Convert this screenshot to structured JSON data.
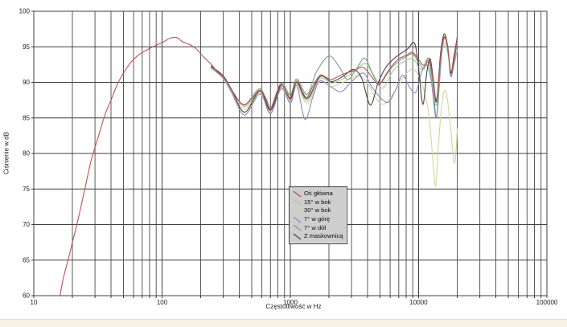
{
  "window": {
    "background_color": "#ffffff",
    "footer_strip_color": "#f6f2e5"
  },
  "chart_data": {
    "type": "line",
    "title": "",
    "xlabel": "Częstotliwość w Hz",
    "ylabel": "Ciśnienie w dB",
    "x_scale": "log",
    "xlim": [
      10,
      100000
    ],
    "ylim": [
      60,
      100
    ],
    "x_ticks": [
      10,
      100,
      1000,
      10000,
      100000
    ],
    "x_tick_labels": [
      "10",
      "100",
      "1000",
      "10000",
      "100000"
    ],
    "y_ticks": [
      100,
      95,
      90,
      85,
      80,
      75,
      70,
      65,
      60
    ],
    "grid": "on",
    "grid_color": "#5a5a5a",
    "major_grid_color": "#3f3f3f",
    "tick_label_color": "#1a1a1a",
    "legend_position": "center-bottom",
    "legend_background": "#cecece",
    "series": [
      {
        "name": "30° w bok",
        "color": "#d8d39b",
        "points": [
          [
            240,
            92.0
          ],
          [
            300,
            90.5
          ],
          [
            350,
            88.6
          ],
          [
            440,
            86.3
          ],
          [
            580,
            88.3
          ],
          [
            700,
            85.8
          ],
          [
            850,
            89.0
          ],
          [
            1000,
            87.2
          ],
          [
            1120,
            89.4
          ],
          [
            1350,
            87.1
          ],
          [
            1700,
            90.1
          ],
          [
            2100,
            89.4
          ],
          [
            2700,
            90.2
          ],
          [
            3300,
            90.9
          ],
          [
            3900,
            90.2
          ],
          [
            4600,
            87.9
          ],
          [
            5300,
            86.9
          ],
          [
            6000,
            87.8
          ],
          [
            7000,
            89.6
          ],
          [
            8000,
            91.2
          ],
          [
            9000,
            91.9
          ],
          [
            10000,
            90.9
          ],
          [
            11000,
            88.9
          ],
          [
            12000,
            85.5
          ],
          [
            13000,
            78.5
          ],
          [
            13600,
            75.5
          ],
          [
            14300,
            81.5
          ],
          [
            15300,
            87.5
          ],
          [
            16300,
            88.8
          ],
          [
            17300,
            85.5
          ],
          [
            18300,
            81.0
          ],
          [
            19000,
            78.6
          ],
          [
            19600,
            80.5
          ],
          [
            20000,
            83.5
          ]
        ]
      },
      {
        "name": "15° w bok",
        "color": "#a7c8a5",
        "points": [
          [
            240,
            92.3
          ],
          [
            300,
            90.9
          ],
          [
            350,
            88.9
          ],
          [
            440,
            86.6
          ],
          [
            580,
            88.6
          ],
          [
            700,
            86.0
          ],
          [
            850,
            89.4
          ],
          [
            1000,
            87.5
          ],
          [
            1120,
            89.8
          ],
          [
            1350,
            87.4
          ],
          [
            1700,
            90.5
          ],
          [
            2100,
            89.9
          ],
          [
            2700,
            90.7
          ],
          [
            3300,
            91.9
          ],
          [
            3900,
            92.6
          ],
          [
            4600,
            90.4
          ],
          [
            5300,
            89.2
          ],
          [
            6300,
            91.6
          ],
          [
            7500,
            92.8
          ],
          [
            9000,
            93.3
          ],
          [
            10500,
            91.8
          ],
          [
            12000,
            92.6
          ],
          [
            13800,
            86.8
          ],
          [
            15500,
            95.2
          ],
          [
            17000,
            93.8
          ],
          [
            18000,
            91.0
          ],
          [
            20000,
            94.6
          ]
        ]
      },
      {
        "name": "7° w górę",
        "color": "#8a88c6",
        "points": [
          [
            240,
            92.1
          ],
          [
            300,
            90.6
          ],
          [
            350,
            88.5
          ],
          [
            440,
            85.4
          ],
          [
            580,
            88.4
          ],
          [
            700,
            85.6
          ],
          [
            850,
            89.2
          ],
          [
            1000,
            87.1
          ],
          [
            1120,
            89.6
          ],
          [
            1300,
            84.8
          ],
          [
            1500,
            88.0
          ],
          [
            1700,
            90.2
          ],
          [
            2100,
            89.3
          ],
          [
            2500,
            88.7
          ],
          [
            3000,
            90.1
          ],
          [
            3700,
            91.3
          ],
          [
            4300,
            89.4
          ],
          [
            5000,
            87.9
          ],
          [
            5800,
            87.2
          ],
          [
            6600,
            88.9
          ],
          [
            7500,
            91.0
          ],
          [
            8500,
            89.3
          ],
          [
            9500,
            88.6
          ],
          [
            10500,
            91.3
          ],
          [
            11500,
            92.5
          ],
          [
            12500,
            90.4
          ],
          [
            13800,
            85.0
          ],
          [
            15000,
            93.8
          ],
          [
            16000,
            96.2
          ],
          [
            17000,
            94.3
          ],
          [
            17800,
            90.8
          ],
          [
            18800,
            92.5
          ],
          [
            20000,
            95.8
          ]
        ]
      },
      {
        "name": "7° w dół",
        "color": "#73a982",
        "points": [
          [
            240,
            92.2
          ],
          [
            300,
            90.8
          ],
          [
            350,
            88.8
          ],
          [
            440,
            86.9
          ],
          [
            580,
            89.1
          ],
          [
            700,
            86.4
          ],
          [
            850,
            89.9
          ],
          [
            1000,
            88.2
          ],
          [
            1120,
            90.5
          ],
          [
            1350,
            88.3
          ],
          [
            1600,
            91.5
          ],
          [
            2000,
            93.7
          ],
          [
            2400,
            92.2
          ],
          [
            2800,
            90.4
          ],
          [
            3300,
            92.0
          ],
          [
            3800,
            93.4
          ],
          [
            4400,
            91.2
          ],
          [
            5000,
            89.9
          ],
          [
            6000,
            91.8
          ],
          [
            7000,
            93.0
          ],
          [
            8000,
            93.6
          ],
          [
            9000,
            94.0
          ],
          [
            10000,
            92.8
          ],
          [
            11000,
            91.9
          ],
          [
            12000,
            93.0
          ],
          [
            13000,
            89.5
          ],
          [
            13800,
            85.2
          ],
          [
            15000,
            94.5
          ],
          [
            16000,
            96.3
          ],
          [
            17000,
            94.6
          ],
          [
            17800,
            91.2
          ],
          [
            18800,
            93.2
          ],
          [
            20000,
            95.5
          ]
        ]
      },
      {
        "name": "Z maskownicą",
        "color": "#454545",
        "points": [
          [
            240,
            92.3
          ],
          [
            300,
            90.9
          ],
          [
            350,
            88.9
          ],
          [
            440,
            85.8
          ],
          [
            580,
            88.8
          ],
          [
            700,
            86.1
          ],
          [
            850,
            89.6
          ],
          [
            1000,
            87.7
          ],
          [
            1120,
            90.0
          ],
          [
            1350,
            87.7
          ],
          [
            1700,
            90.8
          ],
          [
            2100,
            90.1
          ],
          [
            2600,
            90.9
          ],
          [
            3100,
            91.8
          ],
          [
            3600,
            90.6
          ],
          [
            4200,
            86.8
          ],
          [
            4800,
            89.8
          ],
          [
            5500,
            92.0
          ],
          [
            6300,
            93.2
          ],
          [
            7200,
            94.0
          ],
          [
            8200,
            94.7
          ],
          [
            9300,
            95.5
          ],
          [
            10000,
            92.0
          ],
          [
            10800,
            86.9
          ],
          [
            11600,
            91.5
          ],
          [
            12300,
            93.3
          ],
          [
            13000,
            90.5
          ],
          [
            13800,
            87.3
          ],
          [
            14800,
            94.0
          ],
          [
            15800,
            96.8
          ],
          [
            16800,
            95.2
          ],
          [
            17800,
            91.3
          ],
          [
            18800,
            93.5
          ],
          [
            20000,
            96.4
          ]
        ]
      },
      {
        "name": "Oś główna",
        "color": "#c0504d",
        "points": [
          [
            16,
            60
          ],
          [
            17,
            62.5
          ],
          [
            18.5,
            65
          ],
          [
            20,
            67.5
          ],
          [
            22,
            70.5
          ],
          [
            25,
            75
          ],
          [
            28,
            79
          ],
          [
            32,
            82.5
          ],
          [
            36,
            85.5
          ],
          [
            40,
            87.5
          ],
          [
            45,
            89.8
          ],
          [
            50,
            91.3
          ],
          [
            57,
            92.8
          ],
          [
            65,
            93.8
          ],
          [
            75,
            94.5
          ],
          [
            85,
            95.0
          ],
          [
            95,
            95.4
          ],
          [
            105,
            95.8
          ],
          [
            115,
            96.2
          ],
          [
            130,
            96.3
          ],
          [
            145,
            95.7
          ],
          [
            165,
            95.3
          ],
          [
            185,
            94.7
          ],
          [
            210,
            93.6
          ],
          [
            240,
            92.6
          ],
          [
            270,
            91.5
          ],
          [
            300,
            90.8
          ],
          [
            340,
            89.3
          ],
          [
            390,
            87.6
          ],
          [
            440,
            86.8
          ],
          [
            500,
            87.7
          ],
          [
            580,
            88.9
          ],
          [
            650,
            87.6
          ],
          [
            700,
            86.3
          ],
          [
            780,
            88.5
          ],
          [
            850,
            89.8
          ],
          [
            950,
            88.4
          ],
          [
            1000,
            87.9
          ],
          [
            1120,
            90.2
          ],
          [
            1250,
            88.6
          ],
          [
            1350,
            87.9
          ],
          [
            1500,
            89.5
          ],
          [
            1700,
            91.0
          ],
          [
            1900,
            90.7
          ],
          [
            2100,
            90.4
          ],
          [
            2400,
            90.9
          ],
          [
            2700,
            91.3
          ],
          [
            3100,
            91.6
          ],
          [
            3700,
            92.1
          ],
          [
            4300,
            90.8
          ],
          [
            4900,
            89.7
          ],
          [
            5600,
            91.2
          ],
          [
            6300,
            92.5
          ],
          [
            7000,
            93.3
          ],
          [
            8000,
            93.8
          ],
          [
            9000,
            94.2
          ],
          [
            10000,
            93.2
          ],
          [
            11000,
            92.4
          ],
          [
            12000,
            93.4
          ],
          [
            12800,
            91.0
          ],
          [
            13800,
            87.6
          ],
          [
            14800,
            93.5
          ],
          [
            15800,
            96.4
          ],
          [
            16800,
            95.0
          ],
          [
            17800,
            91.6
          ],
          [
            18800,
            93.0
          ],
          [
            20000,
            96.2
          ]
        ]
      }
    ],
    "legend_order": [
      "Oś główna",
      "15° w bok",
      "30° w bok",
      "7° w górę",
      "7° w dół",
      "Z maskownicą"
    ]
  }
}
